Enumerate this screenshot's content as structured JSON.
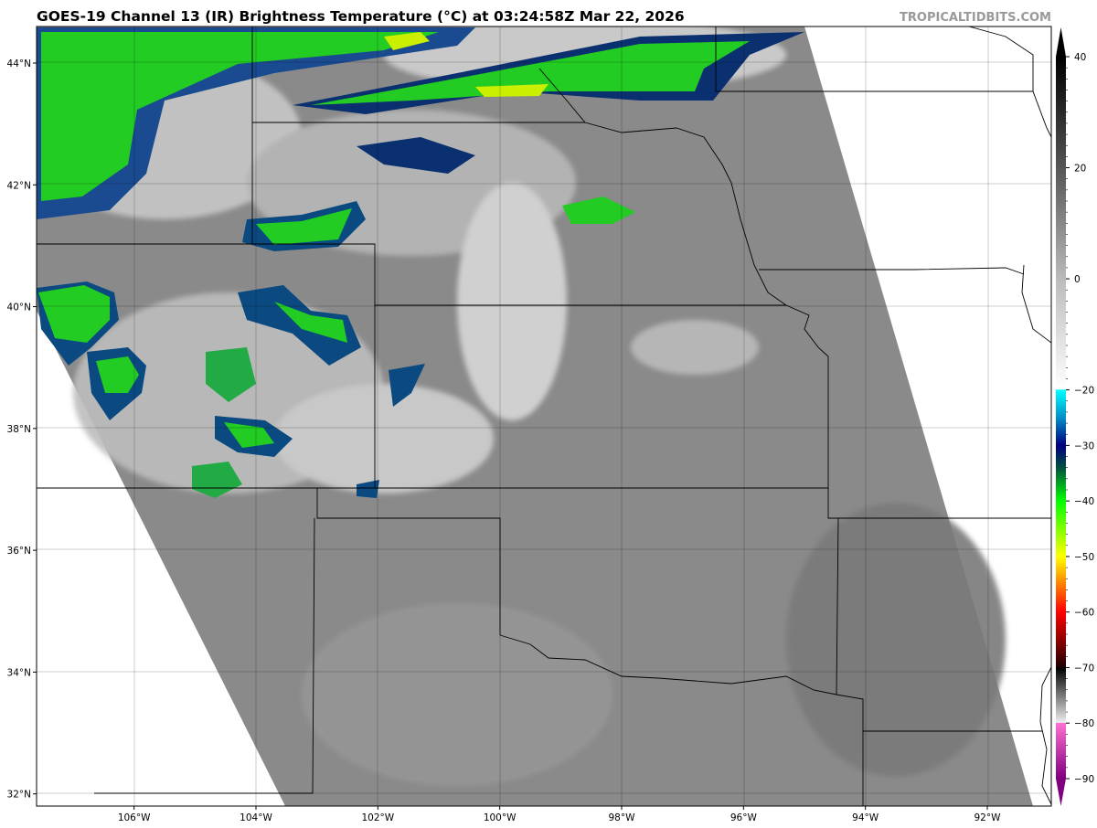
{
  "title": "GOES-19 Channel 13 (IR) Brightness Temperature (°C) at 03:24:58Z Mar 22, 2026",
  "brand": "TROPICALTIDBITS.COM",
  "map": {
    "extent": {
      "lon": [
        -107.6,
        -90.95
      ],
      "lat": [
        31.8,
        44.6
      ]
    },
    "lon_ticks": [
      {
        "v": -106,
        "label": "106°W"
      },
      {
        "v": -104,
        "label": "104°W"
      },
      {
        "v": -102,
        "label": "102°W"
      },
      {
        "v": -100,
        "label": "100°W"
      },
      {
        "v": -98,
        "label": "98°W"
      },
      {
        "v": -96,
        "label": "96°W"
      },
      {
        "v": -94,
        "label": "94°W"
      },
      {
        "v": -92,
        "label": "92°W"
      }
    ],
    "lat_ticks": [
      {
        "v": 44,
        "label": "44°N"
      },
      {
        "v": 42,
        "label": "42°N"
      },
      {
        "v": 40,
        "label": "40°N"
      },
      {
        "v": 38,
        "label": "38°N"
      },
      {
        "v": 36,
        "label": "36°N"
      },
      {
        "v": 34,
        "label": "34°N"
      },
      {
        "v": 32,
        "label": "32°N"
      }
    ],
    "grid": true
  },
  "colorbar": {
    "range": [
      -90,
      40
    ],
    "ticks": [
      {
        "v": 40,
        "label": "40"
      },
      {
        "v": 20,
        "label": "20"
      },
      {
        "v": 0,
        "label": "0"
      },
      {
        "v": -20,
        "label": "−20"
      },
      {
        "v": -30,
        "label": "−30"
      },
      {
        "v": -40,
        "label": "−40"
      },
      {
        "v": -50,
        "label": "−50"
      },
      {
        "v": -60,
        "label": "−60"
      },
      {
        "v": -70,
        "label": "−70"
      },
      {
        "v": -80,
        "label": "−80"
      },
      {
        "v": -90,
        "label": "−90"
      }
    ],
    "stops": [
      {
        "v": 40,
        "c": "#000000"
      },
      {
        "v": 20,
        "c": "#555555"
      },
      {
        "v": 0,
        "c": "#bbbbbb"
      },
      {
        "v": -19.9,
        "c": "#ffffff"
      },
      {
        "v": -20,
        "c": "#00ffff"
      },
      {
        "v": -25,
        "c": "#0090c8"
      },
      {
        "v": -30,
        "c": "#000080"
      },
      {
        "v": -34,
        "c": "#005040"
      },
      {
        "v": -40,
        "c": "#00ff00"
      },
      {
        "v": -50,
        "c": "#ffff00"
      },
      {
        "v": -55,
        "c": "#ff8000"
      },
      {
        "v": -60,
        "c": "#ff0000"
      },
      {
        "v": -69.9,
        "c": "#200000"
      },
      {
        "v": -70,
        "c": "#000000"
      },
      {
        "v": -79.9,
        "c": "#eeeeee"
      },
      {
        "v": -80,
        "c": "#ff70d0"
      },
      {
        "v": -90,
        "c": "#800080"
      }
    ]
  }
}
